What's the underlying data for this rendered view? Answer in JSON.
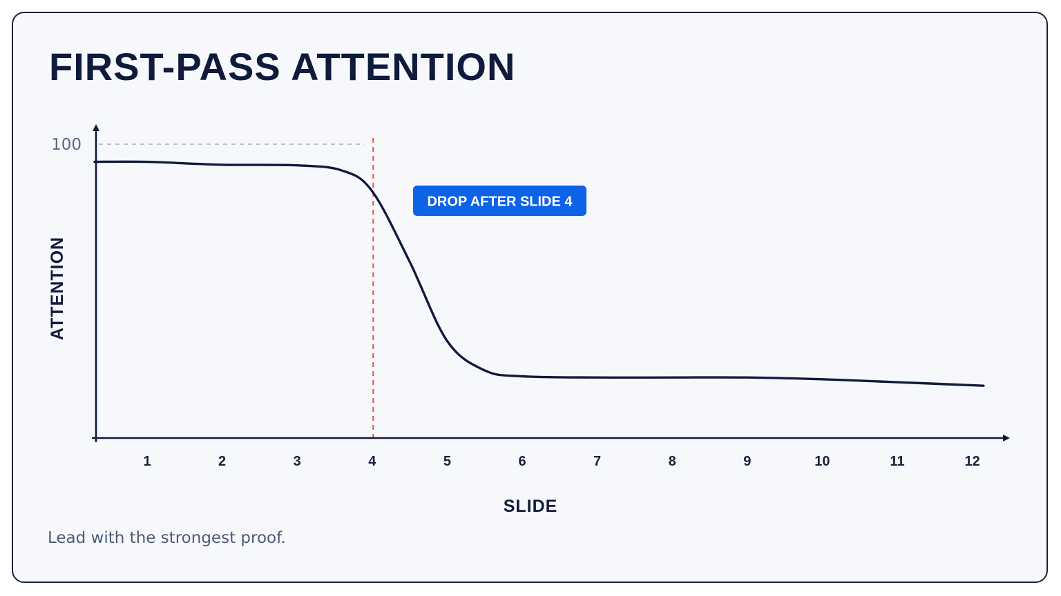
{
  "card": {
    "title": "FIRST-PASS ATTENTION",
    "footnote": "Lead with the strongest proof."
  },
  "chart_data": {
    "type": "line",
    "title": "FIRST-PASS ATTENTION",
    "xlabel": "SLIDE",
    "ylabel": "ATTENTION",
    "x": [
      0.3,
      1,
      2,
      3,
      3.6,
      4,
      4.5,
      5,
      5.5,
      6,
      7,
      8,
      9,
      10,
      11,
      12.15
    ],
    "ticks_x": [
      "1",
      "2",
      "3",
      "4",
      "5",
      "6",
      "7",
      "8",
      "9",
      "10",
      "11",
      "12"
    ],
    "ticks_y": [
      "100"
    ],
    "series": [
      {
        "values": [
          94,
          94,
          93,
          92.8,
          91,
          84,
          60,
          33,
          23,
          21,
          20.6,
          20.6,
          20.6,
          20.0,
          19.0,
          17.8
        ]
      }
    ],
    "xlim": [
      -0.7,
      12.5
    ],
    "ylim": [
      0,
      100
    ],
    "annotations": [
      {
        "type": "vline",
        "x": 4,
        "color": "#e8553e",
        "dashed": true
      },
      {
        "type": "hline",
        "y": 100,
        "color": "#a6aebd",
        "dashed": true
      },
      {
        "type": "label",
        "text": "DROP AFTER SLIDE 4",
        "background": "#0d62e8",
        "color": "#ffffff"
      }
    ],
    "colors": {
      "line": "#0f1b3d",
      "axis": "#0f1b3d",
      "callout": "#0d62e8",
      "marker_line": "#e8553e"
    }
  }
}
